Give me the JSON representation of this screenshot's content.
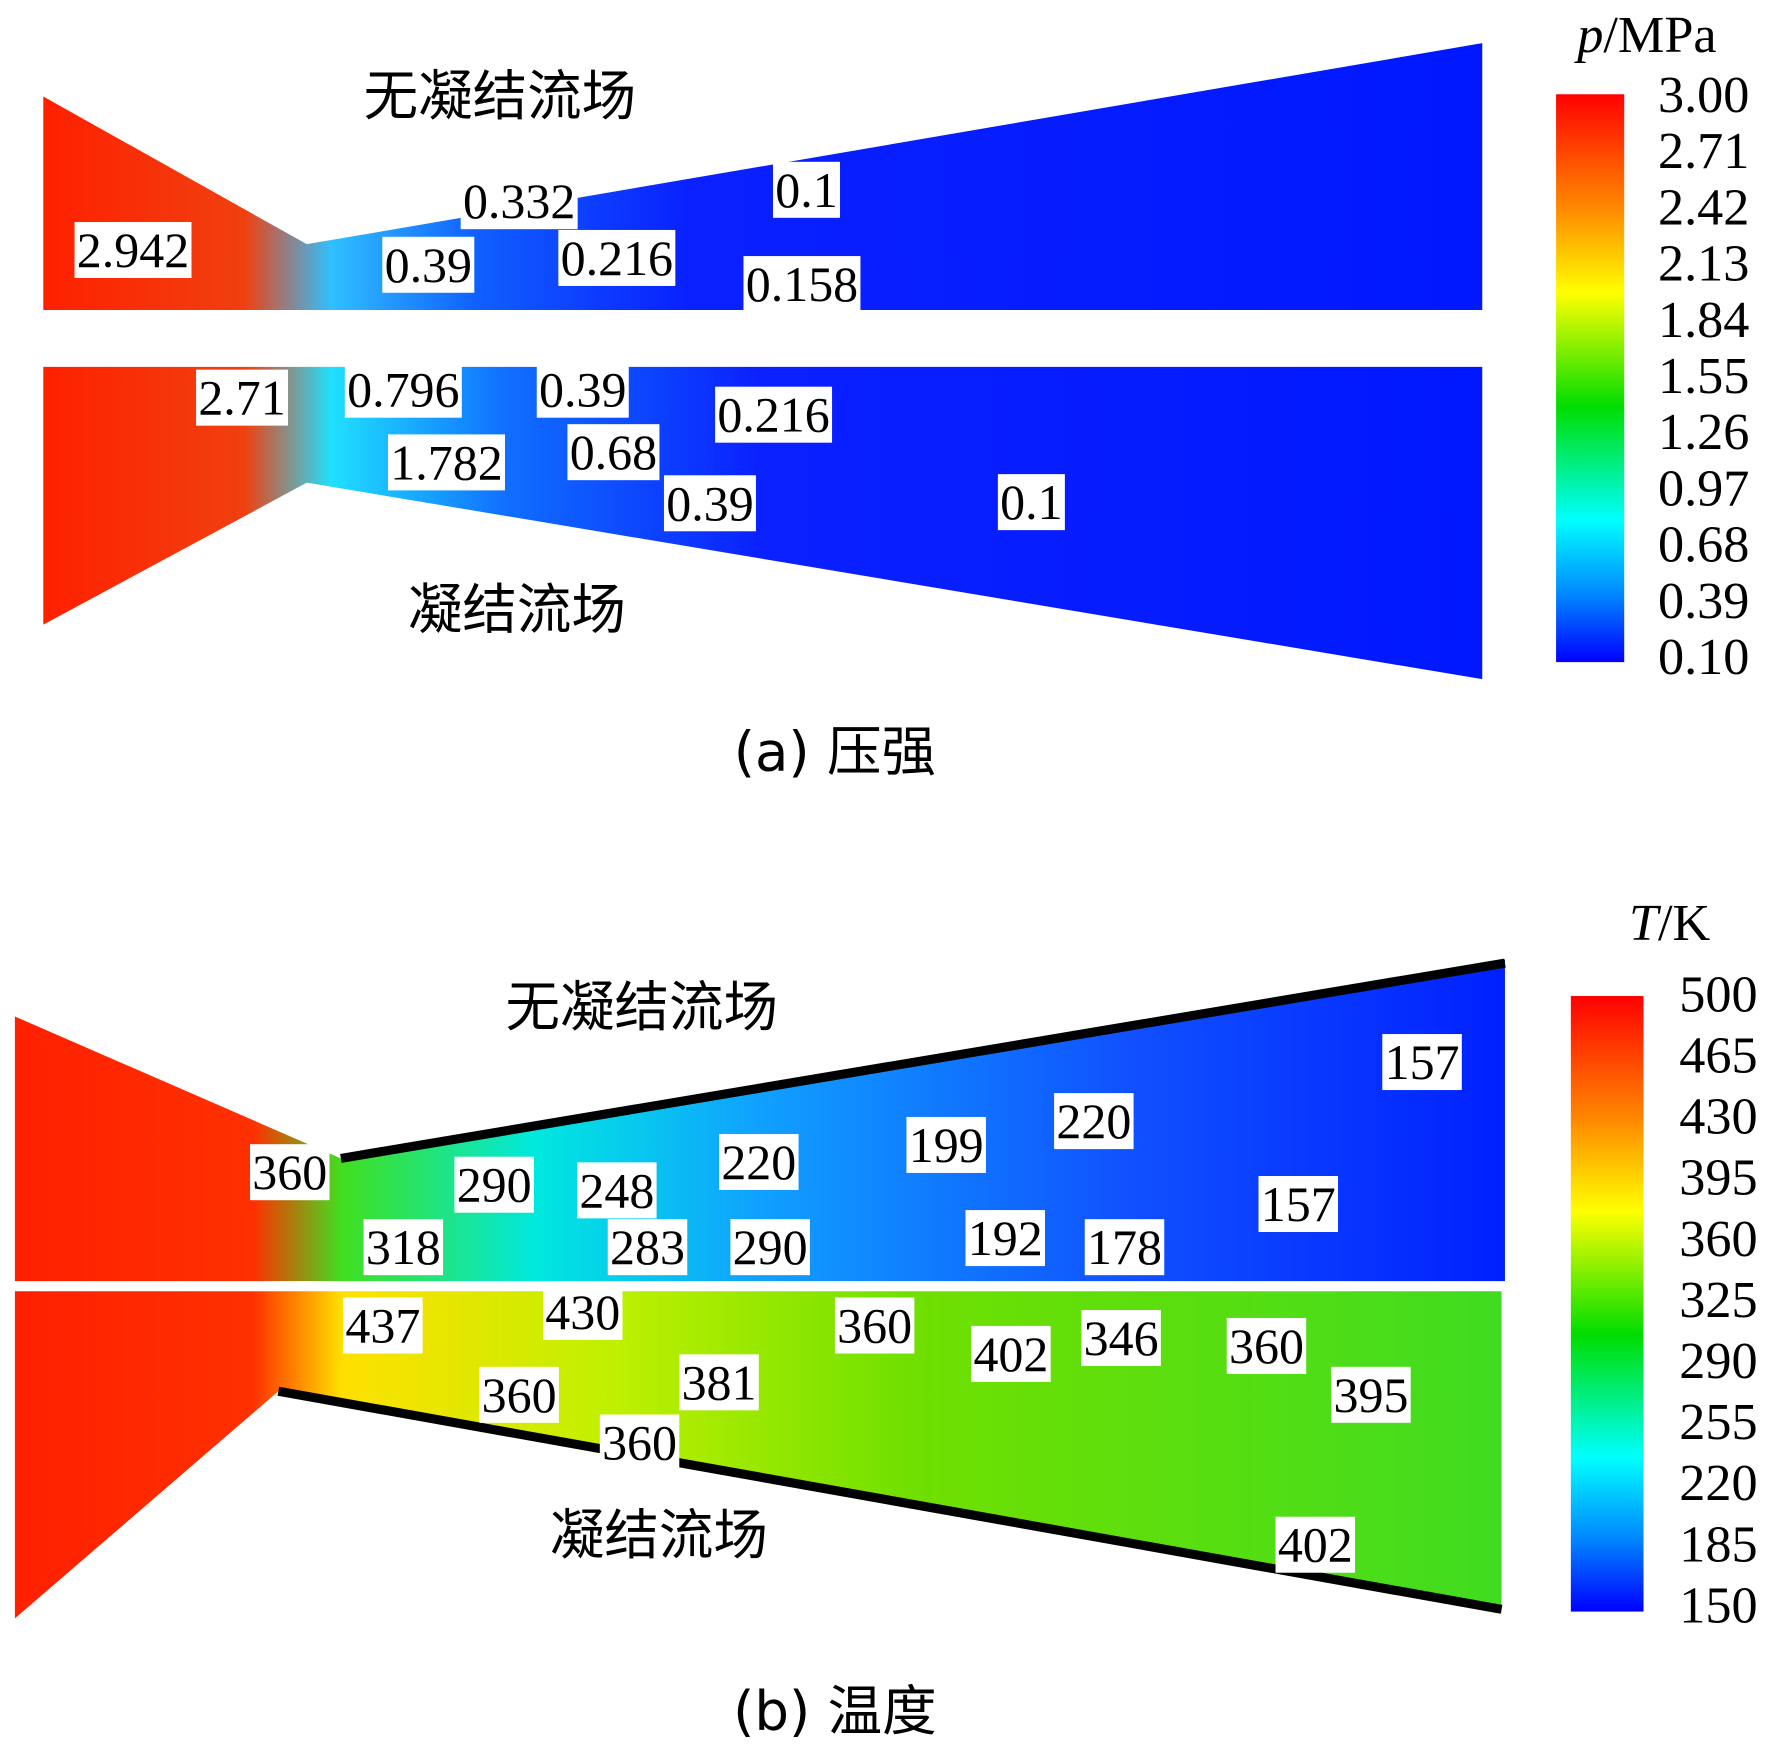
{
  "panels": [
    {
      "caption": "(a) 压强",
      "upper_label": "无凝结流场",
      "lower_label": "凝结流场",
      "colorbar": {
        "symbol": "p",
        "unit": "/MPa",
        "ticks": [
          "3.00",
          "2.71",
          "2.42",
          "2.13",
          "1.84",
          "1.55",
          "1.26",
          "0.97",
          "0.68",
          "0.39",
          "0.10"
        ]
      },
      "upper_contour_labels": [
        "2.942",
        "0.332",
        "0.39",
        "0.216",
        "0.1",
        "0.158"
      ],
      "lower_contour_labels": [
        "2.71",
        "0.796",
        "0.39",
        "1.782",
        "0.68",
        "0.216",
        "0.39",
        "0.1"
      ]
    },
    {
      "caption": "(b) 温度",
      "upper_label": "无凝结流场",
      "lower_label": "凝结流场",
      "colorbar": {
        "symbol": "T",
        "unit": "/K",
        "ticks": [
          "500",
          "465",
          "430",
          "395",
          "360",
          "325",
          "290",
          "255",
          "220",
          "185",
          "150"
        ]
      },
      "upper_contour_labels": [
        "360",
        "290",
        "248",
        "220",
        "199",
        "220",
        "157",
        "318",
        "283",
        "290",
        "192",
        "178",
        "157"
      ],
      "lower_contour_labels": [
        "437",
        "430",
        "360",
        "402",
        "346",
        "360",
        "395",
        "381",
        "360",
        "360",
        "402"
      ]
    }
  ]
}
